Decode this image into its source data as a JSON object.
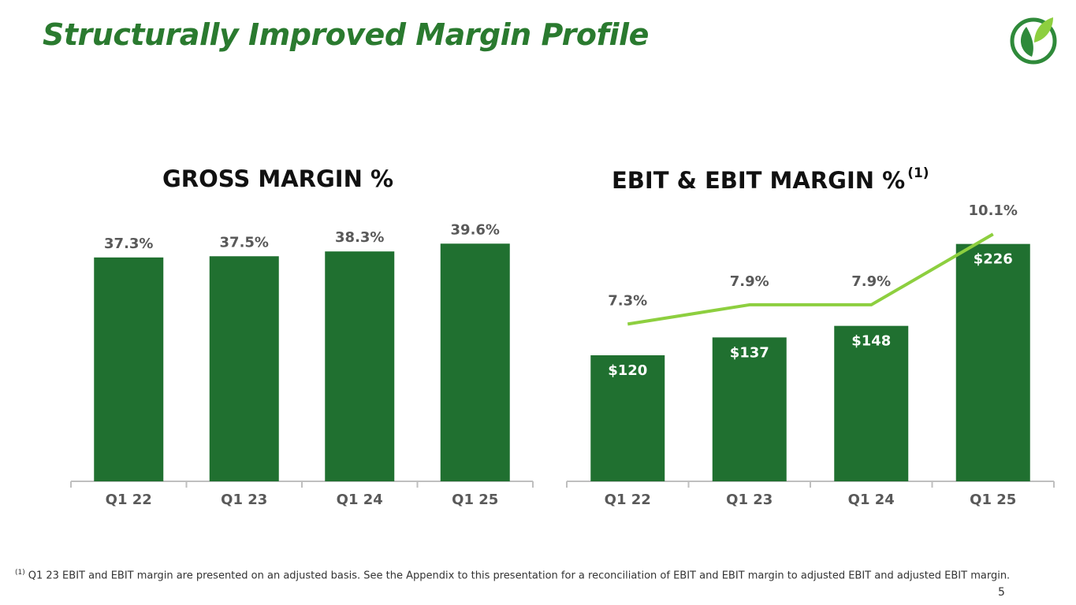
{
  "slide": {
    "title": "Structurally Improved Margin Profile",
    "footnote_marker": "(1)",
    "footnote": "Q1 23 EBIT and EBIT margin are presented on an adjusted basis. See the Appendix to this presentation for a reconciliation of EBIT and EBIT margin to adjusted EBIT and adjusted EBIT margin.",
    "page_number": "5",
    "logo_icon": "leaf-circle-logo-icon"
  },
  "colors": {
    "title": "#2a7a2f",
    "bar": "#207030",
    "line": "#8dcf3f",
    "label_gray": "#595959",
    "axis": "#bfbfbf",
    "logo_green": "#2f8a3a",
    "logo_light": "#8dcf3f"
  },
  "chart_data": [
    {
      "type": "bar",
      "title": "GROSS MARGIN %",
      "categories": [
        "Q1 22",
        "Q1 23",
        "Q1 24",
        "Q1 25"
      ],
      "values": [
        37.3,
        37.5,
        38.3,
        39.6
      ],
      "value_labels": [
        "37.3%",
        "37.5%",
        "38.3%",
        "39.6%"
      ],
      "ylim": [
        0,
        42
      ],
      "grid": false
    },
    {
      "type": "bar",
      "title": "EBIT & EBIT MARGIN %",
      "title_superscript": "(1)",
      "categories": [
        "Q1 22",
        "Q1 23",
        "Q1 24",
        "Q1 25"
      ],
      "series": [
        {
          "values": [
            120,
            137,
            148,
            226
          ],
          "labels": [
            "$120",
            "$137",
            "$148",
            "$226"
          ]
        },
        {
          "type": "line",
          "values": [
            7.3,
            7.9,
            7.9,
            10.1
          ],
          "labels": [
            "7.3%",
            "7.9%",
            "7.9%",
            "10.1%"
          ]
        }
      ],
      "ylim": [
        0,
        240
      ],
      "line_ylim": [
        0,
        13
      ],
      "grid": false
    }
  ]
}
